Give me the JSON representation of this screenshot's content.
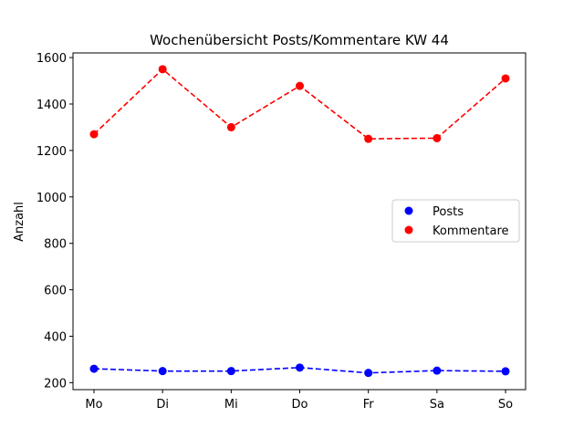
{
  "chart_data": {
    "type": "line",
    "title": "Wochenübersicht Posts/Kommentare KW 44",
    "xlabel": "",
    "ylabel": "Anzahl",
    "categories": [
      "Mo",
      "Di",
      "Mi",
      "Do",
      "Fr",
      "Sa",
      "So"
    ],
    "ylim": [
      170,
      1620
    ],
    "yticks": [
      200,
      400,
      600,
      800,
      1000,
      1200,
      1400,
      1600
    ],
    "grid": false,
    "legend_position": "center-right",
    "series": [
      {
        "name": "Posts",
        "color": "#0000ff",
        "values": [
          260,
          250,
          250,
          265,
          242,
          252,
          249
        ]
      },
      {
        "name": "Kommentare",
        "color": "#ff0000",
        "values": [
          1270,
          1550,
          1300,
          1478,
          1250,
          1253,
          1510
        ]
      }
    ]
  }
}
